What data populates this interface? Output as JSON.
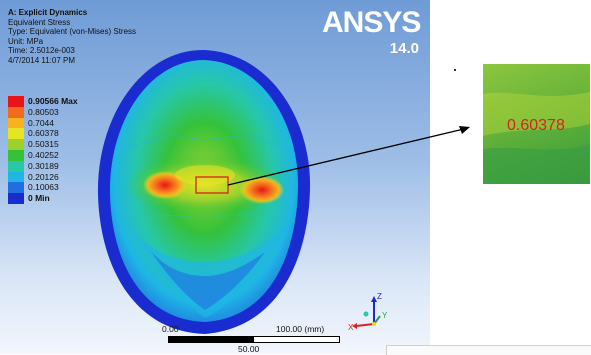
{
  "info": {
    "title": "A: Explicit Dynamics",
    "result": "Equivalent Stress",
    "type": "Type: Equivalent (von-Mises) Stress",
    "unit": "Unit: MPa",
    "time": "Time: 2.5012e-003",
    "date": "4/7/2014 11:07 PM"
  },
  "logo": {
    "brand": "ANSYS",
    "version": "14.0"
  },
  "legend": [
    {
      "label": "0.90566 Max",
      "color": "#e8141b",
      "bold": true
    },
    {
      "label": "0.80503",
      "color": "#f46a1c",
      "bold": false
    },
    {
      "label": "0.7044",
      "color": "#f7b21f",
      "bold": false
    },
    {
      "label": "0.60378",
      "color": "#e7e325",
      "bold": false
    },
    {
      "label": "0.50315",
      "color": "#9bd22c",
      "bold": false
    },
    {
      "label": "0.40252",
      "color": "#35c23a",
      "bold": false
    },
    {
      "label": "0.30189",
      "color": "#27c7a8",
      "bold": false
    },
    {
      "label": "0.20126",
      "color": "#1fb6e4",
      "bold": false
    },
    {
      "label": "0.10063",
      "color": "#1f6fe0",
      "bold": false
    },
    {
      "label": "0 Min",
      "color": "#1a2bd0",
      "bold": true
    }
  ],
  "scale": {
    "left": "0.00",
    "right": "100.00 (mm)",
    "mid": "50.00"
  },
  "triad": {
    "y": "Y",
    "z": "Z",
    "x": "X"
  },
  "zoom": {
    "value": "0.60378"
  }
}
